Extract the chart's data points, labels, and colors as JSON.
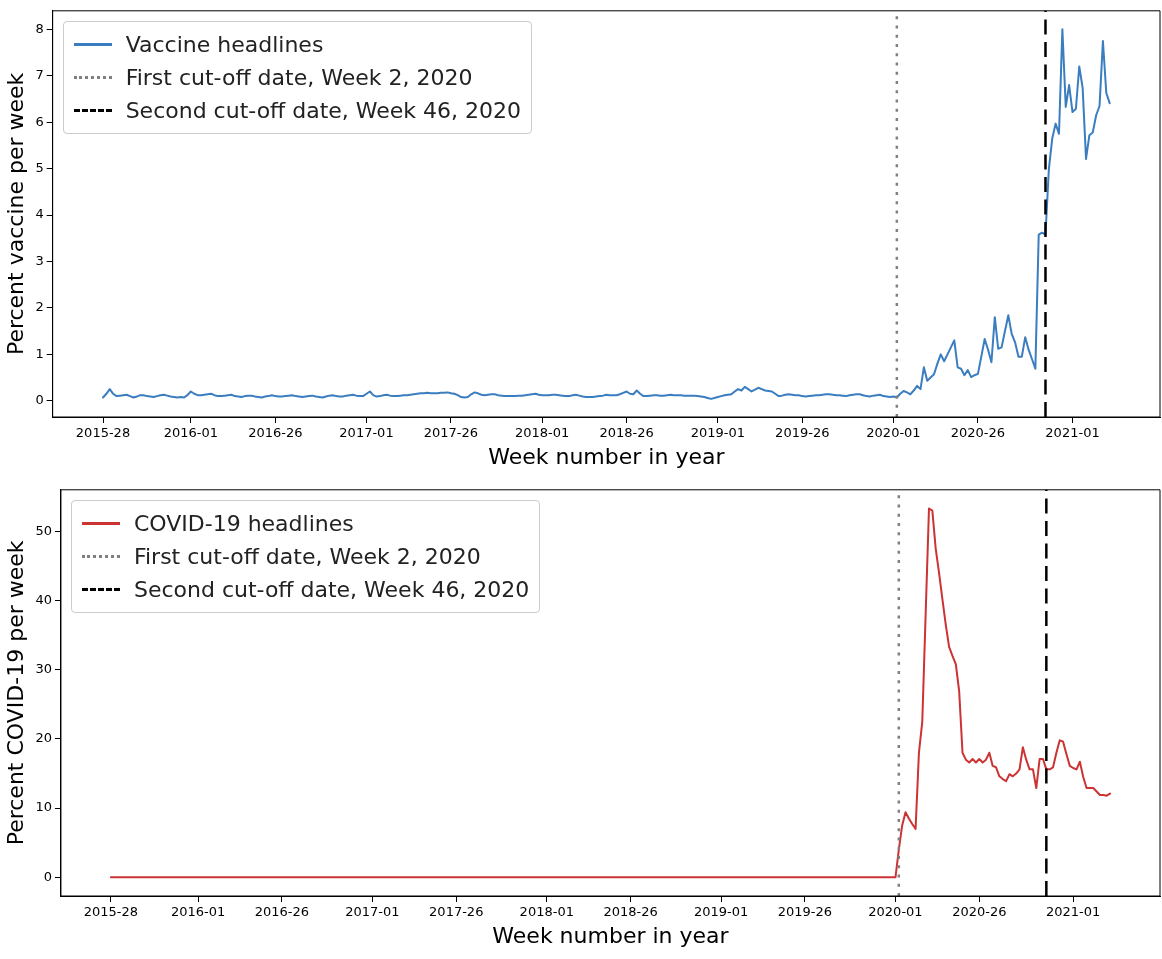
{
  "chart_data": [
    {
      "type": "line",
      "xlabel": "Week number in year",
      "ylabel": "Percent vaccine per week",
      "categories": [
        "2015-28",
        null,
        null,
        null,
        null,
        null,
        null,
        null,
        null,
        null,
        null,
        null,
        null,
        null,
        null,
        null,
        null,
        null,
        null,
        null,
        null,
        null,
        null,
        null,
        null,
        null,
        "2016-01",
        null,
        null,
        null,
        null,
        null,
        null,
        null,
        null,
        null,
        null,
        null,
        null,
        null,
        null,
        null,
        null,
        null,
        null,
        null,
        null,
        null,
        null,
        null,
        null,
        "2016-26",
        null,
        null,
        null,
        null,
        null,
        null,
        null,
        null,
        null,
        null,
        null,
        null,
        null,
        null,
        null,
        null,
        null,
        null,
        null,
        null,
        null,
        null,
        null,
        null,
        null,
        null,
        "2017-01",
        null,
        null,
        null,
        null,
        null,
        null,
        null,
        null,
        null,
        null,
        null,
        null,
        null,
        null,
        null,
        null,
        null,
        null,
        null,
        null,
        null,
        null,
        null,
        null,
        "2017-26",
        null,
        null,
        null,
        null,
        null,
        null,
        null,
        null,
        null,
        null,
        null,
        null,
        null,
        null,
        null,
        null,
        null,
        null,
        null,
        null,
        null,
        null,
        null,
        null,
        null,
        null,
        "2018-01",
        null,
        null,
        null,
        null,
        null,
        null,
        null,
        null,
        null,
        null,
        null,
        null,
        null,
        null,
        null,
        null,
        null,
        null,
        null,
        null,
        null,
        null,
        null,
        null,
        "2018-26",
        null,
        null,
        null,
        null,
        null,
        null,
        null,
        null,
        null,
        null,
        null,
        null,
        null,
        null,
        null,
        null,
        null,
        null,
        null,
        null,
        null,
        null,
        null,
        null,
        null,
        null,
        "2019-01",
        null,
        null,
        null,
        null,
        null,
        null,
        null,
        null,
        null,
        null,
        null,
        null,
        null,
        null,
        null,
        null,
        null,
        null,
        null,
        null,
        null,
        null,
        null,
        null,
        "2019-26",
        null,
        null,
        null,
        null,
        null,
        null,
        null,
        null,
        null,
        null,
        null,
        null,
        null,
        null,
        null,
        null,
        null,
        null,
        null,
        null,
        null,
        null,
        null,
        null,
        null,
        null,
        "2020-01",
        null,
        null,
        null,
        null,
        null,
        null,
        null,
        null,
        null,
        null,
        null,
        null,
        null,
        null,
        null,
        null,
        null,
        null,
        null,
        null,
        null,
        null,
        null,
        null,
        "2020-26",
        null,
        null,
        null,
        null,
        null,
        null,
        null,
        null,
        null,
        null,
        null,
        null,
        null,
        null,
        null,
        null,
        null,
        null,
        null,
        null,
        null,
        null,
        null,
        null,
        null,
        null,
        null,
        "2021-01",
        null,
        null,
        null,
        null,
        null,
        null,
        null,
        null,
        null,
        null,
        null
      ],
      "series": [
        {
          "name": "Vaccine headlines",
          "color": "#3a7dc0",
          "values": [
            0.07,
            0.15,
            0.25,
            0.15,
            0.1,
            0.11,
            0.12,
            0.13,
            0.1,
            0.07,
            0.09,
            0.12,
            0.12,
            0.1,
            0.09,
            0.08,
            0.1,
            0.12,
            0.13,
            0.11,
            0.09,
            0.08,
            0.07,
            0.08,
            0.07,
            0.12,
            0.2,
            0.15,
            0.12,
            0.12,
            0.13,
            0.14,
            0.15,
            0.12,
            0.1,
            0.1,
            0.11,
            0.12,
            0.13,
            0.1,
            0.09,
            0.08,
            0.1,
            0.11,
            0.11,
            0.09,
            0.08,
            0.07,
            0.09,
            0.1,
            0.12,
            0.1,
            0.09,
            0.09,
            0.1,
            0.11,
            0.12,
            0.1,
            0.09,
            0.08,
            0.09,
            0.1,
            0.11,
            0.09,
            0.08,
            0.07,
            0.09,
            0.11,
            0.12,
            0.1,
            0.09,
            0.09,
            0.11,
            0.12,
            0.13,
            0.11,
            0.1,
            0.1,
            0.15,
            0.2,
            0.12,
            0.09,
            0.1,
            0.12,
            0.13,
            0.11,
            0.1,
            0.1,
            0.11,
            0.12,
            0.12,
            0.13,
            0.14,
            0.15,
            0.16,
            0.16,
            0.17,
            0.16,
            0.16,
            0.16,
            0.17,
            0.17,
            0.18,
            0.16,
            0.15,
            0.12,
            0.08,
            0.07,
            0.08,
            0.14,
            0.18,
            0.16,
            0.13,
            0.12,
            0.13,
            0.14,
            0.14,
            0.12,
            0.11,
            0.1,
            0.1,
            0.1,
            0.1,
            0.11,
            0.11,
            0.12,
            0.13,
            0.14,
            0.15,
            0.13,
            0.12,
            0.12,
            0.12,
            0.13,
            0.13,
            0.12,
            0.11,
            0.1,
            0.1,
            0.12,
            0.13,
            0.11,
            0.09,
            0.08,
            0.08,
            0.08,
            0.09,
            0.1,
            0.11,
            0.13,
            0.12,
            0.12,
            0.12,
            0.14,
            0.17,
            0.2,
            0.15,
            0.14,
            0.22,
            0.15,
            0.1,
            0.1,
            0.11,
            0.12,
            0.12,
            0.11,
            0.11,
            0.12,
            0.13,
            0.12,
            0.12,
            0.12,
            0.11,
            0.11,
            0.11,
            0.11,
            0.1,
            0.09,
            0.08,
            0.06,
            0.04,
            0.06,
            0.08,
            0.1,
            0.12,
            0.13,
            0.14,
            0.2,
            0.25,
            0.22,
            0.3,
            0.25,
            0.2,
            0.24,
            0.28,
            0.25,
            0.22,
            0.21,
            0.2,
            0.15,
            0.1,
            0.11,
            0.13,
            0.14,
            0.13,
            0.12,
            0.12,
            0.1,
            0.09,
            0.1,
            0.11,
            0.12,
            0.12,
            0.13,
            0.14,
            0.14,
            0.13,
            0.12,
            0.12,
            0.11,
            0.1,
            0.12,
            0.13,
            0.14,
            0.14,
            0.12,
            0.1,
            0.09,
            0.11,
            0.12,
            0.13,
            0.1,
            0.09,
            0.08,
            0.09,
            0.07,
            0.15,
            0.21,
            0.18,
            0.14,
            0.22,
            0.32,
            0.25,
            0.72,
            0.43,
            0.5,
            0.57,
            0.8,
            1.0,
            0.85,
            1.0,
            1.15,
            1.3,
            0.72,
            0.69,
            0.55,
            0.66,
            0.51,
            0.55,
            0.58,
            0.95,
            1.33,
            1.1,
            0.83,
            1.8,
            1.12,
            1.15,
            1.5,
            1.84,
            1.44,
            1.26,
            0.95,
            0.95,
            1.37,
            1.1,
            0.9,
            0.69,
            3.58,
            3.62,
            3.58,
            4.99,
            5.65,
            5.97,
            5.75,
            8.0,
            6.33,
            6.8,
            6.22,
            6.29,
            7.2,
            6.74,
            5.21,
            5.72,
            5.78,
            6.15,
            6.35,
            7.75,
            6.63,
            6.41
          ]
        }
      ],
      "ylim": [
        -0.35,
        8.4
      ],
      "yticks": [
        0,
        1,
        2,
        3,
        4,
        5,
        6,
        7,
        8
      ],
      "ref_lines": [
        {
          "axis": "x",
          "label": "First cut-off date, Week 2, 2020",
          "color": "#808080",
          "line_style": "dotted"
        },
        {
          "axis": "x",
          "label": "Second cut-off date, Week 46, 2020",
          "color": "#000000",
          "line_style": "dashed"
        }
      ],
      "grid": false,
      "legend": "top left",
      "marker": "none",
      "line_style": "solid"
    },
    {
      "type": "line",
      "xlabel": "Week number in year",
      "ylabel": "Percent COVID-19 per week",
      "categories": [
        "2015-28",
        null,
        null,
        null,
        null,
        null,
        null,
        null,
        null,
        null,
        null,
        null,
        null,
        null,
        null,
        null,
        null,
        null,
        null,
        null,
        null,
        null,
        null,
        null,
        null,
        null,
        "2016-01",
        null,
        null,
        null,
        null,
        null,
        null,
        null,
        null,
        null,
        null,
        null,
        null,
        null,
        null,
        null,
        null,
        null,
        null,
        null,
        null,
        null,
        null,
        null,
        null,
        "2016-26",
        null,
        null,
        null,
        null,
        null,
        null,
        null,
        null,
        null,
        null,
        null,
        null,
        null,
        null,
        null,
        null,
        null,
        null,
        null,
        null,
        null,
        null,
        null,
        null,
        null,
        null,
        "2017-01",
        null,
        null,
        null,
        null,
        null,
        null,
        null,
        null,
        null,
        null,
        null,
        null,
        null,
        null,
        null,
        null,
        null,
        null,
        null,
        null,
        null,
        null,
        null,
        null,
        "2017-26",
        null,
        null,
        null,
        null,
        null,
        null,
        null,
        null,
        null,
        null,
        null,
        null,
        null,
        null,
        null,
        null,
        null,
        null,
        null,
        null,
        null,
        null,
        null,
        null,
        null,
        null,
        "2018-01",
        null,
        null,
        null,
        null,
        null,
        null,
        null,
        null,
        null,
        null,
        null,
        null,
        null,
        null,
        null,
        null,
        null,
        null,
        null,
        null,
        null,
        null,
        null,
        null,
        "2018-26",
        null,
        null,
        null,
        null,
        null,
        null,
        null,
        null,
        null,
        null,
        null,
        null,
        null,
        null,
        null,
        null,
        null,
        null,
        null,
        null,
        null,
        null,
        null,
        null,
        null,
        null,
        "2019-01",
        null,
        null,
        null,
        null,
        null,
        null,
        null,
        null,
        null,
        null,
        null,
        null,
        null,
        null,
        null,
        null,
        null,
        null,
        null,
        null,
        null,
        null,
        null,
        null,
        "2019-26",
        null,
        null,
        null,
        null,
        null,
        null,
        null,
        null,
        null,
        null,
        null,
        null,
        null,
        null,
        null,
        null,
        null,
        null,
        null,
        null,
        null,
        null,
        null,
        null,
        null,
        null,
        "2020-01",
        null,
        null,
        null,
        null,
        null,
        null,
        null,
        null,
        null,
        null,
        null,
        null,
        null,
        null,
        null,
        null,
        null,
        null,
        null,
        null,
        null,
        null,
        null,
        null,
        "2020-26",
        null,
        null,
        null,
        null,
        null,
        null,
        null,
        null,
        null,
        null,
        null,
        null,
        null,
        null,
        null,
        null,
        null,
        null,
        null,
        null,
        null,
        null,
        null,
        null,
        null,
        null,
        null,
        "2021-01",
        null,
        null,
        null,
        null,
        null,
        null,
        null,
        null,
        null,
        null,
        null
      ],
      "series": [
        {
          "name": "COVID-19 headlines",
          "color": "#cc3333",
          "values": [
            0,
            0,
            0,
            0,
            0,
            0,
            0,
            0,
            0,
            0,
            0,
            0,
            0,
            0,
            0,
            0,
            0,
            0,
            0,
            0,
            0,
            0,
            0,
            0,
            0,
            0,
            0,
            0,
            0,
            0,
            0,
            0,
            0,
            0,
            0,
            0,
            0,
            0,
            0,
            0,
            0,
            0,
            0,
            0,
            0,
            0,
            0,
            0,
            0,
            0,
            0,
            0,
            0,
            0,
            0,
            0,
            0,
            0,
            0,
            0,
            0,
            0,
            0,
            0,
            0,
            0,
            0,
            0,
            0,
            0,
            0,
            0,
            0,
            0,
            0,
            0,
            0,
            0,
            0,
            0,
            0,
            0,
            0,
            0,
            0,
            0,
            0,
            0,
            0,
            0,
            0,
            0,
            0,
            0,
            0,
            0,
            0,
            0,
            0,
            0,
            0,
            0,
            0,
            0,
            0,
            0,
            0,
            0,
            0,
            0,
            0,
            0,
            0,
            0,
            0,
            0,
            0,
            0,
            0,
            0,
            0,
            0,
            0,
            0,
            0,
            0,
            0,
            0,
            0,
            0,
            0,
            0,
            0,
            0,
            0,
            0,
            0,
            0,
            0,
            0,
            0,
            0,
            0,
            0,
            0,
            0,
            0,
            0,
            0,
            0,
            0,
            0,
            0,
            0,
            0,
            0,
            0,
            0,
            0,
            0,
            0,
            0,
            0,
            0,
            0,
            0,
            0,
            0,
            0,
            0,
            0,
            0,
            0,
            0,
            0,
            0,
            0,
            0,
            0,
            0,
            0,
            0,
            0,
            0,
            0,
            0,
            0,
            0,
            0,
            0,
            0,
            0,
            0,
            0,
            0,
            0,
            0,
            0,
            0,
            0,
            0,
            0,
            0,
            0,
            0,
            0,
            0,
            0,
            0,
            0,
            0,
            0,
            0,
            0,
            0,
            0,
            0,
            0,
            0,
            0,
            0,
            0,
            0,
            0,
            0,
            0,
            0,
            0,
            0,
            0,
            0,
            0,
            0,
            0,
            0,
            4.0,
            7.5,
            9.4,
            8.5,
            7.7,
            7.0,
            18.0,
            22.5,
            38,
            53.3,
            53.0,
            47.5,
            44,
            40.2,
            36.5,
            33.3,
            32,
            30.8,
            26.9,
            18.0,
            17.0,
            16.6,
            17.1,
            16.6,
            17.1,
            16.6,
            17,
            18.0,
            16.1,
            15.9,
            14.6,
            14.2,
            13.9,
            14.9,
            14.6,
            15.0,
            15.6,
            18.8,
            17,
            15.6,
            15.6,
            12.9,
            17.1,
            17.1,
            15.6,
            15.6,
            15.9,
            18,
            19.8,
            19.6,
            17.8,
            16.1,
            15.8,
            15.6,
            16.7,
            14.5,
            12.9,
            12.9,
            12.9,
            12.4,
            11.9,
            11.9,
            11.8,
            12.1
          ]
        }
      ],
      "ylim": [
        -2.7,
        56
      ],
      "yticks": [
        0,
        10,
        20,
        30,
        40,
        50
      ],
      "ref_lines": [
        {
          "axis": "x",
          "label": "First cut-off date, Week 2, 2020",
          "color": "#808080",
          "line_style": "dotted"
        },
        {
          "axis": "x",
          "label": "Second cut-off date, Week 46, 2020",
          "color": "#000000",
          "line_style": "dashed"
        }
      ],
      "grid": false,
      "legend": "top left",
      "marker": "none",
      "line_style": "solid"
    }
  ]
}
